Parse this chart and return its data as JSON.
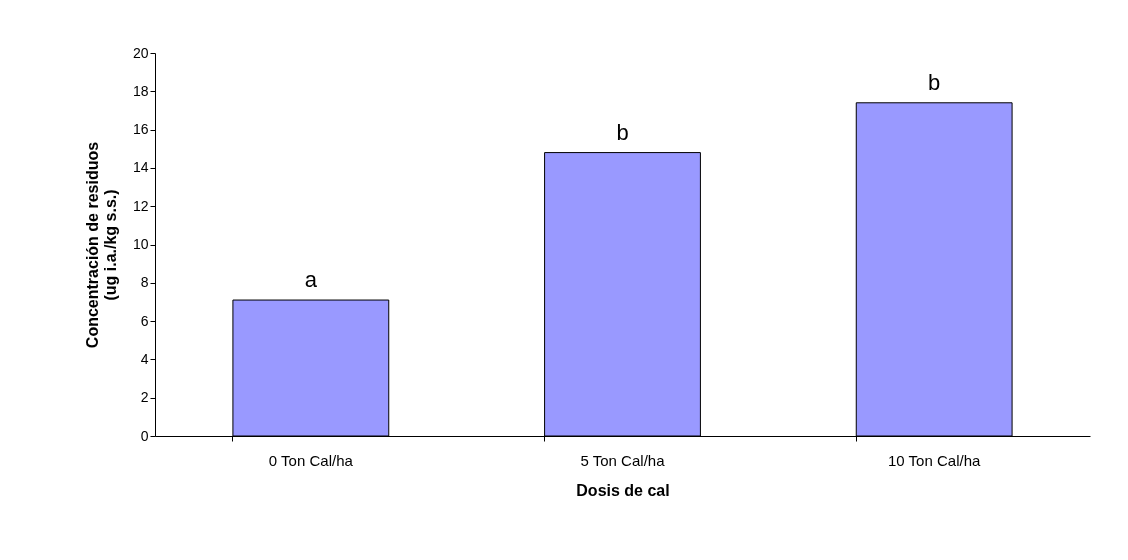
{
  "chart_data": {
    "type": "bar",
    "xlabel": "Dosis de cal",
    "ylabel": "Concentración de residuos\n(ug i.a./kg s.s.)",
    "categories": [
      "0 Ton Cal/ha",
      "5 Ton Cal/ha",
      "10 Ton Cal/ha"
    ],
    "values": [
      7.1,
      14.8,
      17.4
    ],
    "color": "#9999ff",
    "ylim": [
      0,
      20
    ],
    "yticks": [
      0,
      2,
      4,
      6,
      8,
      10,
      12,
      14,
      16,
      18,
      20
    ],
    "grid": false,
    "annotations": [
      {
        "text": "a",
        "x": "0 Ton Cal/ha",
        "y": 7.1
      },
      {
        "text": "b",
        "x": "5 Ton Cal/ha",
        "y": 14.8
      },
      {
        "text": "b",
        "x": "10 Ton Cal/ha",
        "y": 17.4
      }
    ]
  }
}
